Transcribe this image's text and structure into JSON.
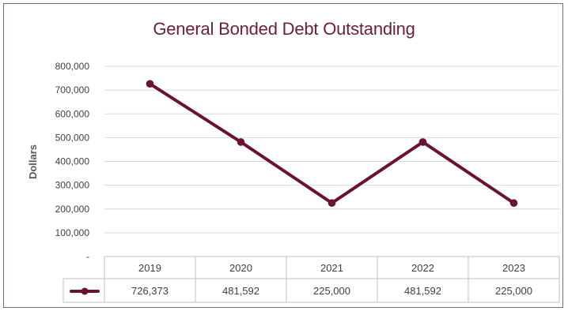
{
  "chart_data": {
    "type": "line",
    "title": "General Bonded Debt Outstanding",
    "ylabel": "Dollars",
    "xlabel": "",
    "categories": [
      "2019",
      "2020",
      "2021",
      "2022",
      "2023"
    ],
    "series": [
      {
        "values": [
          726373,
          481592,
          225000,
          481592,
          225000
        ],
        "color": "#6b1134"
      }
    ],
    "data_table": [
      "726,373",
      "481,592",
      "225,000",
      "481,592",
      "225,000"
    ],
    "ylim": [
      0,
      800000
    ],
    "yticks": [
      {
        "value": 800000,
        "label": "800,000"
      },
      {
        "value": 700000,
        "label": "700,000"
      },
      {
        "value": 600000,
        "label": "600,000"
      },
      {
        "value": 500000,
        "label": "500,000"
      },
      {
        "value": 400000,
        "label": "400,000"
      },
      {
        "value": 300000,
        "label": "300,000"
      },
      {
        "value": 200000,
        "label": "200,000"
      },
      {
        "value": 100000,
        "label": "100,000"
      },
      {
        "value": 0,
        "label": "-"
      }
    ],
    "grid": true,
    "legend": "data-table"
  }
}
